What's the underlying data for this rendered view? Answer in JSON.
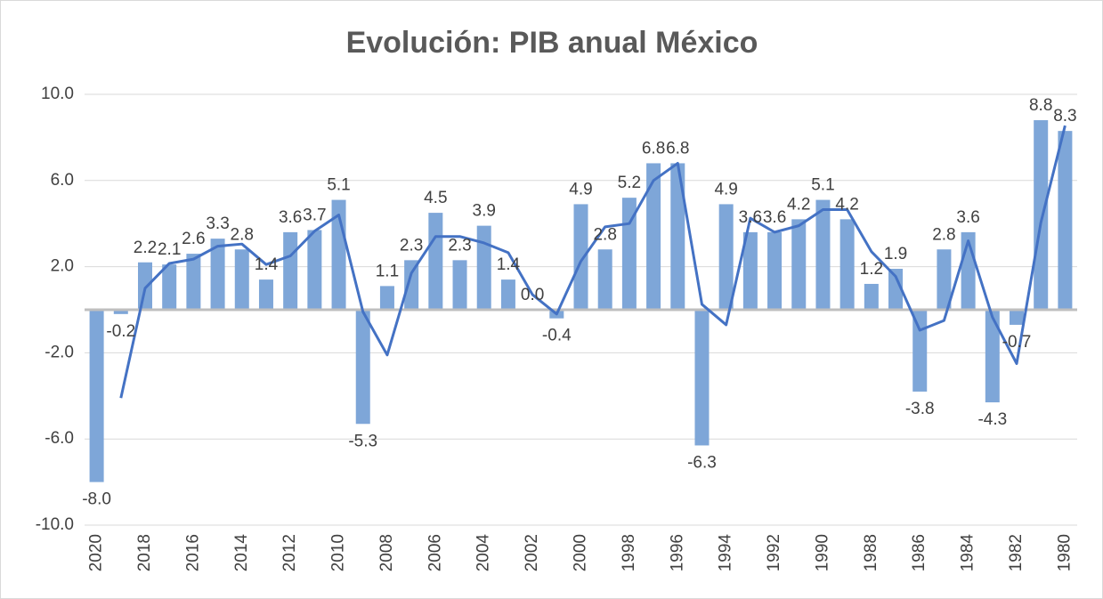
{
  "chart_data": {
    "type": "bar",
    "title": "Evolución: PIB anual México",
    "categories": [
      "2020",
      null,
      "2018",
      null,
      "2016",
      null,
      "2014",
      null,
      "2012",
      null,
      "2010",
      null,
      "2008",
      null,
      "2006",
      null,
      "2004",
      null,
      "2002",
      null,
      "2000",
      null,
      "1998",
      null,
      "1996",
      null,
      "1994",
      null,
      "1992",
      null,
      "1990",
      null,
      "1988",
      null,
      "1986",
      null,
      "1984",
      null,
      "1982",
      null,
      "1980"
    ],
    "series": [
      {
        "type": "bar",
        "color": "#7ea6d8",
        "values": [
          -8.0,
          -0.2,
          2.2,
          2.1,
          2.6,
          3.3,
          2.8,
          1.4,
          3.6,
          3.7,
          5.1,
          -5.3,
          1.1,
          2.3,
          4.5,
          2.3,
          3.9,
          1.4,
          0.0,
          -0.4,
          4.9,
          2.8,
          5.2,
          6.8,
          6.8,
          -6.3,
          4.9,
          3.6,
          3.6,
          4.2,
          5.1,
          4.2,
          1.2,
          1.9,
          -3.8,
          2.8,
          3.6,
          -4.3,
          -0.7,
          8.8,
          8.3
        ],
        "value_labels": [
          "-8.0",
          "-0.2",
          "2.2",
          "2.1",
          "2.6",
          "3.3",
          "2.8",
          "1.4",
          "3.6",
          "3.7",
          "5.1",
          "-5.3",
          "1.1",
          "2.3",
          "4.5",
          "2.3",
          "3.9",
          "1.4",
          "0.0",
          "-0.4",
          "4.9",
          "2.8",
          "5.2",
          "6.8",
          "6.8",
          "-6.3",
          "4.9",
          "3.6",
          "3.6",
          "4.2",
          "5.1",
          "4.2",
          "1.2",
          "1.9",
          "-3.8",
          "2.8",
          "3.6",
          "-4.3",
          "-0.7",
          "8.8",
          "8.3"
        ]
      },
      {
        "type": "line",
        "color": "#4472c4",
        "values": [
          null,
          -4.1,
          1.0,
          2.15,
          2.35,
          2.95,
          3.05,
          2.1,
          2.5,
          3.65,
          4.4,
          -0.1,
          -2.1,
          1.7,
          3.4,
          3.4,
          3.1,
          2.65,
          0.7,
          -0.2,
          2.25,
          3.85,
          4.0,
          6.0,
          6.8,
          0.25,
          -0.7,
          4.25,
          3.6,
          3.9,
          4.65,
          4.65,
          2.7,
          1.55,
          -0.95,
          -0.5,
          3.2,
          -0.35,
          -2.5,
          4.05,
          8.55
        ]
      }
    ],
    "ylim": [
      -10,
      10
    ],
    "yticks": [
      {
        "value": -10,
        "label": "-10.0"
      },
      {
        "value": -6,
        "label": "-6.0"
      },
      {
        "value": -2,
        "label": "-2.0"
      },
      {
        "value": 2,
        "label": "2.0"
      },
      {
        "value": 6,
        "label": "6.0"
      },
      {
        "value": 10,
        "label": "10.0"
      }
    ],
    "grid": true
  }
}
